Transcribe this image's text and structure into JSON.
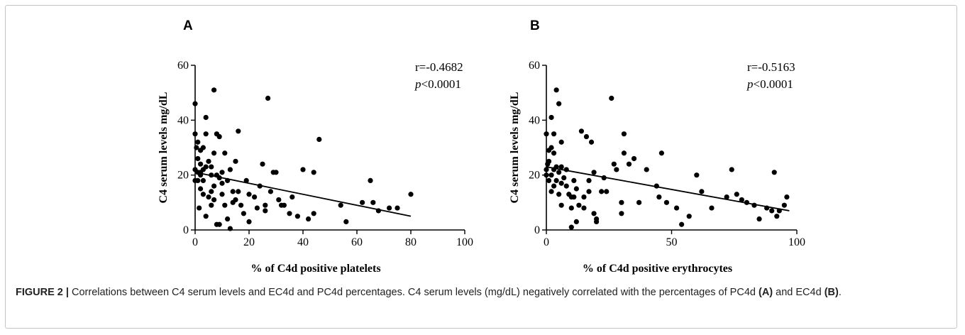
{
  "caption": {
    "label": "FIGURE 2 |",
    "text1": "Correlations between C4 serum levels and EC4d and PC4d percentages. C4 serum levels (mg/dL) negatively correlated with the percentages of PC4d",
    "ref_a": "(A)",
    "text2": "and EC4d",
    "ref_b": "(B)",
    "text3": "."
  },
  "chart_data": [
    {
      "type": "scatter",
      "panel": "A",
      "xlabel": "% of C4d positive platelets",
      "ylabel": "C4 serum levels mg/dL",
      "xlim": [
        0,
        100
      ],
      "ylim": [
        0,
        60
      ],
      "xticks": [
        0,
        20,
        40,
        60,
        80,
        100
      ],
      "yticks": [
        0,
        20,
        40,
        60
      ],
      "annotation_r": "r=-0.4682",
      "annotation_p_italic": "p",
      "annotation_p_rest": "<0.0001",
      "regression": {
        "x": [
          0,
          80
        ],
        "y": [
          21,
          5
        ]
      },
      "points": [
        [
          0,
          46
        ],
        [
          0,
          35
        ],
        [
          0,
          22
        ],
        [
          0,
          18
        ],
        [
          0.5,
          30
        ],
        [
          1,
          32
        ],
        [
          1,
          26
        ],
        [
          1,
          21
        ],
        [
          1,
          18
        ],
        [
          1.5,
          8
        ],
        [
          2,
          29
        ],
        [
          2,
          24
        ],
        [
          2,
          21
        ],
        [
          2,
          20
        ],
        [
          2,
          15
        ],
        [
          3,
          30
        ],
        [
          3,
          22
        ],
        [
          3,
          18
        ],
        [
          3,
          13
        ],
        [
          4,
          41
        ],
        [
          4,
          35
        ],
        [
          4,
          5
        ],
        [
          4,
          23
        ],
        [
          5,
          25
        ],
        [
          5,
          12
        ],
        [
          6,
          23
        ],
        [
          6,
          20
        ],
        [
          6,
          14
        ],
        [
          6,
          9
        ],
        [
          7,
          51
        ],
        [
          7,
          28
        ],
        [
          7,
          16
        ],
        [
          7,
          11
        ],
        [
          8,
          2
        ],
        [
          8,
          20
        ],
        [
          8,
          35
        ],
        [
          9,
          2
        ],
        [
          9,
          34
        ],
        [
          9,
          19
        ],
        [
          10,
          21
        ],
        [
          10,
          17
        ],
        [
          10,
          13
        ],
        [
          11,
          28
        ],
        [
          11,
          9
        ],
        [
          12,
          18
        ],
        [
          12,
          4
        ],
        [
          13,
          22
        ],
        [
          13,
          0.5
        ],
        [
          14,
          10
        ],
        [
          14,
          14
        ],
        [
          15,
          11
        ],
        [
          15,
          25
        ],
        [
          16,
          36
        ],
        [
          16,
          14
        ],
        [
          17,
          9
        ],
        [
          18,
          6
        ],
        [
          19,
          18
        ],
        [
          20,
          13
        ],
        [
          20,
          3
        ],
        [
          22,
          12
        ],
        [
          23,
          8
        ],
        [
          24,
          16
        ],
        [
          25,
          24
        ],
        [
          26,
          9
        ],
        [
          26,
          7
        ],
        [
          27,
          48
        ],
        [
          28,
          14
        ],
        [
          29,
          21
        ],
        [
          30,
          21
        ],
        [
          31,
          11
        ],
        [
          32,
          9
        ],
        [
          33,
          9
        ],
        [
          35,
          6
        ],
        [
          36,
          12
        ],
        [
          38,
          5
        ],
        [
          40,
          22
        ],
        [
          42,
          4
        ],
        [
          44,
          21
        ],
        [
          44,
          6
        ],
        [
          46,
          33
        ],
        [
          54,
          9
        ],
        [
          56,
          3
        ],
        [
          62,
          10
        ],
        [
          65,
          18
        ],
        [
          66,
          10
        ],
        [
          68,
          7
        ],
        [
          72,
          8
        ],
        [
          75,
          8
        ],
        [
          80,
          13
        ]
      ]
    },
    {
      "type": "scatter",
      "panel": "B",
      "xlabel": "% of C4d positive erythrocytes",
      "ylabel": "C4 serum levels mg/dL",
      "xlim": [
        0,
        100
      ],
      "ylim": [
        0,
        60
      ],
      "xticks": [
        0,
        50,
        100
      ],
      "yticks": [
        0,
        20,
        40,
        60
      ],
      "annotation_r": "r=-0.5163",
      "annotation_p_italic": "p",
      "annotation_p_rest": "<0.0001",
      "regression": {
        "x": [
          0,
          97
        ],
        "y": [
          23,
          7
        ]
      },
      "points": [
        [
          0,
          35
        ],
        [
          0,
          22
        ],
        [
          0,
          20
        ],
        [
          0.5,
          24
        ],
        [
          1,
          29
        ],
        [
          1,
          18
        ],
        [
          1,
          25
        ],
        [
          2,
          41
        ],
        [
          2,
          30
        ],
        [
          2,
          20
        ],
        [
          2,
          14
        ],
        [
          3,
          35
        ],
        [
          3,
          28
        ],
        [
          3,
          22
        ],
        [
          3,
          16
        ],
        [
          4,
          51
        ],
        [
          4,
          23
        ],
        [
          4,
          18
        ],
        [
          5,
          46
        ],
        [
          5,
          21
        ],
        [
          5,
          13
        ],
        [
          6,
          32
        ],
        [
          6,
          23
        ],
        [
          6,
          17
        ],
        [
          6,
          9
        ],
        [
          7,
          19
        ],
        [
          8,
          22
        ],
        [
          8,
          16
        ],
        [
          9,
          13
        ],
        [
          10,
          12
        ],
        [
          10,
          8
        ],
        [
          10,
          1
        ],
        [
          11,
          18
        ],
        [
          11,
          12
        ],
        [
          12,
          3
        ],
        [
          12,
          15
        ],
        [
          13,
          9
        ],
        [
          14,
          36
        ],
        [
          15,
          12
        ],
        [
          15,
          8
        ],
        [
          16,
          34
        ],
        [
          17,
          14
        ],
        [
          17,
          18
        ],
        [
          18,
          32
        ],
        [
          19,
          6
        ],
        [
          19,
          21
        ],
        [
          20,
          3
        ],
        [
          20,
          4
        ],
        [
          22,
          14
        ],
        [
          23,
          19
        ],
        [
          24,
          14
        ],
        [
          26,
          48
        ],
        [
          27,
          24
        ],
        [
          28,
          22
        ],
        [
          30,
          10
        ],
        [
          30,
          6
        ],
        [
          31,
          35
        ],
        [
          31,
          28
        ],
        [
          33,
          24
        ],
        [
          35,
          26
        ],
        [
          37,
          10
        ],
        [
          40,
          22
        ],
        [
          44,
          16
        ],
        [
          45,
          12
        ],
        [
          46,
          28
        ],
        [
          48,
          10
        ],
        [
          52,
          8
        ],
        [
          54,
          2
        ],
        [
          57,
          5
        ],
        [
          60,
          20
        ],
        [
          62,
          14
        ],
        [
          66,
          8
        ],
        [
          72,
          12
        ],
        [
          74,
          22
        ],
        [
          76,
          13
        ],
        [
          78,
          11
        ],
        [
          80,
          10
        ],
        [
          83,
          9
        ],
        [
          85,
          4
        ],
        [
          88,
          8
        ],
        [
          90,
          7
        ],
        [
          91,
          21
        ],
        [
          92,
          5
        ],
        [
          93,
          7
        ],
        [
          95,
          9
        ],
        [
          96,
          12
        ]
      ]
    }
  ]
}
